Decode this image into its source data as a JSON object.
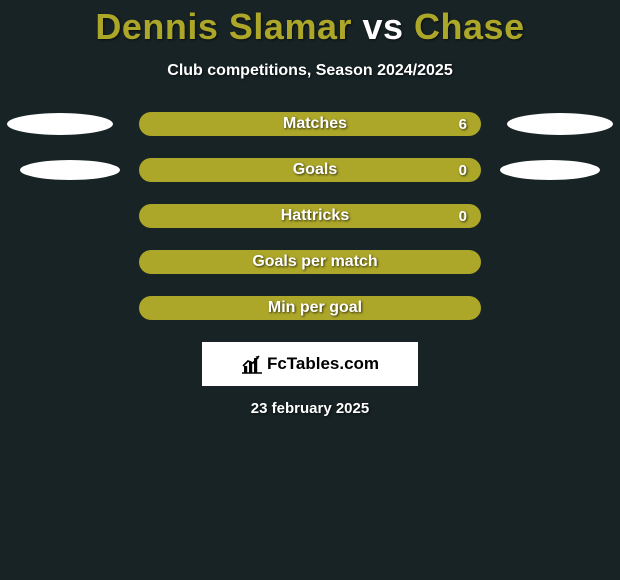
{
  "title": {
    "player1": "Dennis Slamar",
    "vs": " vs ",
    "player2": "Chase",
    "player1_color": "#aca629",
    "vs_color": "#ffffff",
    "player2_color": "#aca629"
  },
  "subtitle": "Club competitions, Season 2024/2025",
  "background_color": "#182325",
  "ellipse_color": "#ffffff",
  "bar_color": "#aca629",
  "rows": [
    {
      "label": "Matches",
      "value": "6",
      "show_ellipses": true,
      "ellipse_small": false
    },
    {
      "label": "Goals",
      "value": "0",
      "show_ellipses": true,
      "ellipse_small": true
    },
    {
      "label": "Hattricks",
      "value": "0",
      "show_ellipses": false,
      "ellipse_small": false
    },
    {
      "label": "Goals per match",
      "value": "",
      "show_ellipses": false,
      "ellipse_small": false
    },
    {
      "label": "Min per goal",
      "value": "",
      "show_ellipses": false,
      "ellipse_small": false
    }
  ],
  "brand": "FcTables.com",
  "date": "23 february 2025"
}
